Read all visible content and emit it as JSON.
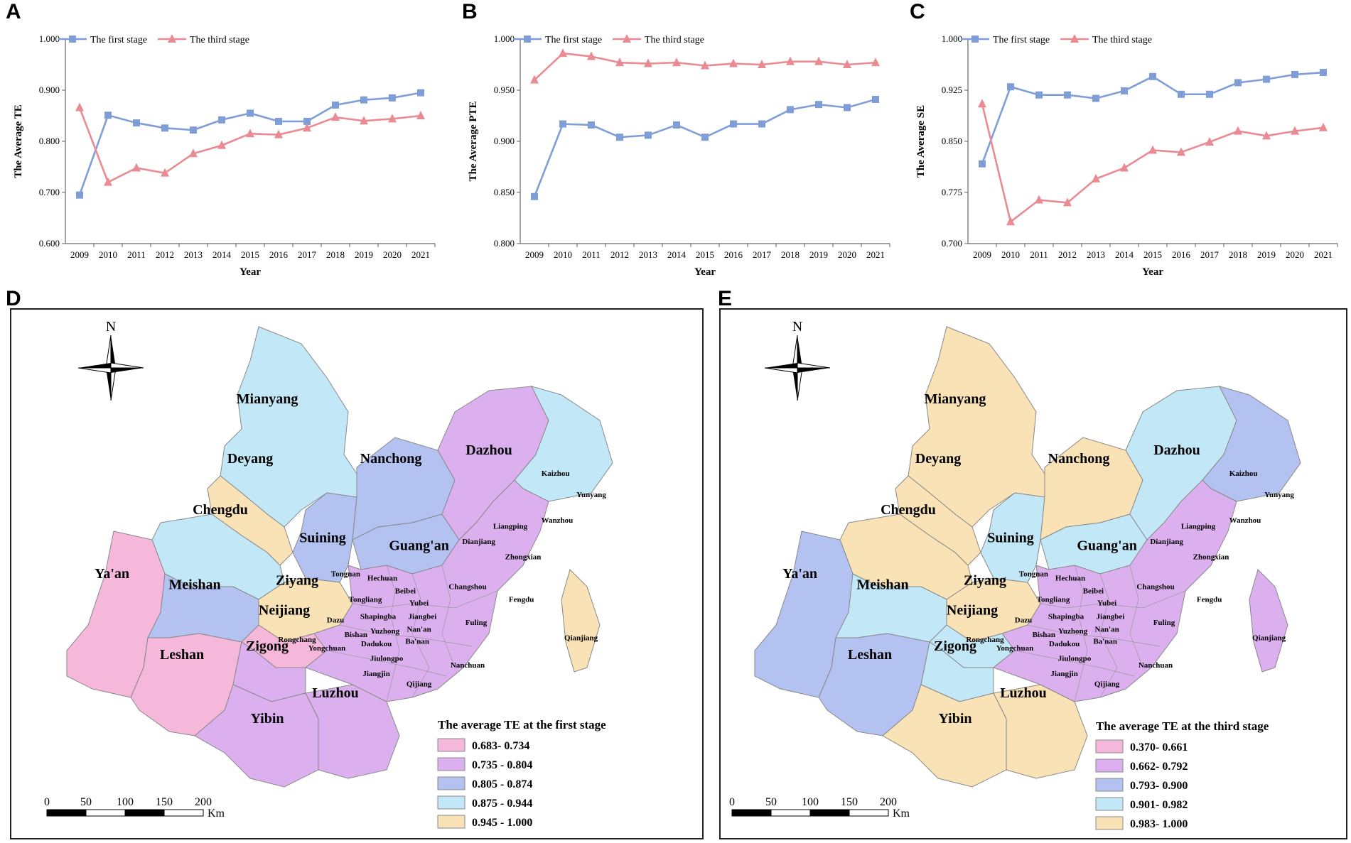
{
  "panels": {
    "A": "A",
    "B": "B",
    "C": "C",
    "D": "D",
    "E": "E"
  },
  "chart_data": [
    {
      "type": "line",
      "panel": "A",
      "title": "",
      "xlabel": "Year",
      "ylabel": "The Average TE",
      "categories": [
        "2009",
        "2010",
        "2011",
        "2012",
        "2013",
        "2014",
        "2015",
        "2016",
        "2017",
        "2018",
        "2019",
        "2020",
        "2021"
      ],
      "ylim": [
        0.6,
        1.0
      ],
      "yticks": [
        "0.600",
        "0.700",
        "0.800",
        "0.900",
        "1.000"
      ],
      "series": [
        {
          "name": "The first stage",
          "color": "#7f9ed8",
          "marker": "square",
          "values": [
            0.695,
            0.851,
            0.836,
            0.826,
            0.822,
            0.842,
            0.855,
            0.839,
            0.839,
            0.871,
            0.881,
            0.885,
            0.895
          ]
        },
        {
          "name": "The third stage",
          "color": "#ea8a92",
          "marker": "triangle",
          "values": [
            0.866,
            0.72,
            0.748,
            0.738,
            0.776,
            0.792,
            0.815,
            0.813,
            0.826,
            0.847,
            0.84,
            0.844,
            0.85
          ]
        }
      ]
    },
    {
      "type": "line",
      "panel": "B",
      "title": "",
      "xlabel": "Year",
      "ylabel": "The Average PTE",
      "categories": [
        "2009",
        "2010",
        "2011",
        "2012",
        "2013",
        "2014",
        "2015",
        "2016",
        "2017",
        "2018",
        "2019",
        "2020",
        "2021"
      ],
      "ylim": [
        0.8,
        1.0
      ],
      "yticks": [
        "0.800",
        "0.850",
        "0.900",
        "0.950",
        "1.000"
      ],
      "series": [
        {
          "name": "The first stage",
          "color": "#7f9ed8",
          "marker": "square",
          "values": [
            0.846,
            0.917,
            0.916,
            0.904,
            0.906,
            0.916,
            0.904,
            0.917,
            0.917,
            0.931,
            0.936,
            0.933,
            0.941
          ]
        },
        {
          "name": "The third stage",
          "color": "#ea8a92",
          "marker": "triangle",
          "values": [
            0.96,
            0.986,
            0.983,
            0.977,
            0.976,
            0.977,
            0.974,
            0.976,
            0.975,
            0.978,
            0.978,
            0.975,
            0.977
          ]
        }
      ]
    },
    {
      "type": "line",
      "panel": "C",
      "title": "",
      "xlabel": "Year",
      "ylabel": "The Average SE",
      "categories": [
        "2009",
        "2010",
        "2011",
        "2012",
        "2013",
        "2014",
        "2015",
        "2016",
        "2017",
        "2018",
        "2019",
        "2020",
        "2021"
      ],
      "ylim": [
        0.7,
        1.0
      ],
      "yticks": [
        "0.700",
        "0.775",
        "0.850",
        "0.925",
        "1.000"
      ],
      "series": [
        {
          "name": "The first stage",
          "color": "#7f9ed8",
          "marker": "square",
          "values": [
            0.817,
            0.93,
            0.918,
            0.918,
            0.913,
            0.924,
            0.945,
            0.919,
            0.919,
            0.936,
            0.941,
            0.948,
            0.951
          ]
        },
        {
          "name": "The third stage",
          "color": "#ea8a92",
          "marker": "triangle",
          "values": [
            0.905,
            0.732,
            0.764,
            0.76,
            0.795,
            0.811,
            0.837,
            0.834,
            0.849,
            0.865,
            0.858,
            0.865,
            0.87
          ]
        }
      ]
    }
  ],
  "maps": {
    "D": {
      "north": "N",
      "legend_title": "The average TE at the first stage",
      "legend": [
        {
          "label": "0.683- 0.734",
          "color": "#f5b8db"
        },
        {
          "label": "0.735 - 0.804",
          "color": "#dcb0ef"
        },
        {
          "label": "0.805 - 0.874",
          "color": "#b4c2f2"
        },
        {
          "label": "0.875 - 0.944",
          "color": "#c2e8f8"
        },
        {
          "label": "0.945 - 1.000",
          "color": "#f8e2b6"
        }
      ],
      "scale_ticks": [
        "0",
        "50",
        "100",
        "150",
        "200"
      ],
      "scale_unit": "Km",
      "regions": {
        "Mianyang": "#c2e8f8",
        "Deyang": "#f8e2b6",
        "Chengdu": "#c2e8f8",
        "Ya'an": "#f5b8db",
        "Meishan": "#b4c2f2",
        "Leshan": "#f5b8db",
        "Neijiang": "#f5b8db",
        "Zigong": "#dcb0ef",
        "Yibin": "#dcb0ef",
        "Luzhou": "#dcb0ef",
        "Ziyang": "#f8e2b6",
        "Suining": "#b4c2f2",
        "Nanchong": "#b4c2f2",
        "Guang'an": "#b4c2f2",
        "Dazhou": "#dcb0ef",
        "Chongqing": "#dcb0ef",
        "Kaizhou": "#c2e8f8",
        "Qianjiang": "#f8e2b6"
      }
    },
    "E": {
      "north": "N",
      "legend_title": "The average TE at the third stage",
      "legend": [
        {
          "label": "0.370- 0.661",
          "color": "#f5b8db"
        },
        {
          "label": "0.662- 0.792",
          "color": "#dcb0ef"
        },
        {
          "label": "0.793- 0.900",
          "color": "#b4c2f2"
        },
        {
          "label": "0.901- 0.982",
          "color": "#c2e8f8"
        },
        {
          "label": "0.983- 1.000",
          "color": "#f8e2b6"
        }
      ],
      "scale_ticks": [
        "0",
        "50",
        "100",
        "150",
        "200"
      ],
      "scale_unit": "Km",
      "regions": {
        "Mianyang": "#f8e2b6",
        "Deyang": "#f8e2b6",
        "Chengdu": "#f8e2b6",
        "Ya'an": "#b4c2f2",
        "Meishan": "#c2e8f8",
        "Leshan": "#b4c2f2",
        "Neijiang": "#c2e8f8",
        "Zigong": "#c2e8f8",
        "Yibin": "#f8e2b6",
        "Luzhou": "#f8e2b6",
        "Ziyang": "#f8e2b6",
        "Suining": "#c2e8f8",
        "Nanchong": "#f8e2b6",
        "Guang'an": "#c2e8f8",
        "Dazhou": "#c2e8f8",
        "Chongqing": "#dcb0ef",
        "Kaizhou": "#b4c2f2",
        "Qianjiang": "#dcb0ef"
      }
    },
    "labels_big": [
      "Mianyang",
      "Deyang",
      "Nanchong",
      "Dazhou",
      "Chengdu",
      "Suining",
      "Guang'an",
      "Ya'an",
      "Meishan",
      "Ziyang",
      "Neijiang",
      "Zigong",
      "Leshan",
      "Yibin",
      "Luzhou"
    ],
    "labels_small": [
      "Kaizhou",
      "Yunyang",
      "Wanzhou",
      "Liangping",
      "Zhongxian",
      "Dianjiang",
      "Tongnan",
      "Hechuan",
      "Changshou",
      "Tongliang",
      "Beibei",
      "Yubei",
      "Fengdu",
      "Dazu",
      "Shapingba",
      "Jiangbei",
      "Fuling",
      "Rongchang",
      "Bishan",
      "Yuzhong",
      "Nan'an",
      "Dadukou",
      "Ba'nan",
      "Yongchuan",
      "Jiulongpo",
      "Jiangjin",
      "Nanchuan",
      "Qijiang",
      "Qianjiang"
    ]
  }
}
